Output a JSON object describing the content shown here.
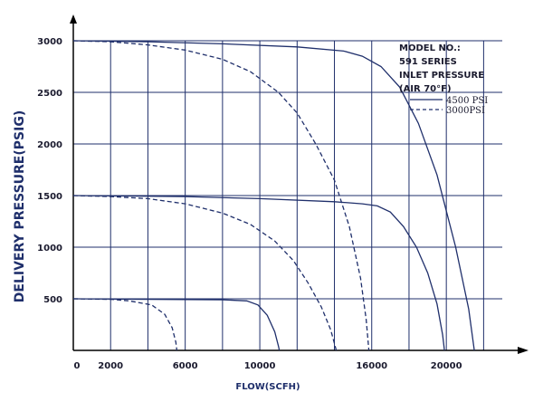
{
  "chart_data": {
    "type": "line",
    "xlabel": "FLOW(SCFH)",
    "ylabel": "DELIVERY PRESSURE(PSIG)",
    "xlim": [
      0,
      23000
    ],
    "ylim": [
      0,
      3000
    ],
    "x_ticks": [
      {
        "value": 0,
        "label": "0"
      },
      {
        "value": 2000,
        "label": "2000"
      },
      {
        "value": 6000,
        "label": "6000"
      },
      {
        "value": 10000,
        "label": "10000"
      },
      {
        "value": 16000,
        "label": "16000"
      },
      {
        "value": 20000,
        "label": "20000"
      }
    ],
    "y_ticks": [
      {
        "value": 500,
        "label": "500"
      },
      {
        "value": 1000,
        "label": "1000"
      },
      {
        "value": 1500,
        "label": "1500"
      },
      {
        "value": 2000,
        "label": "2000"
      },
      {
        "value": 2500,
        "label": "2500"
      },
      {
        "value": 3000,
        "label": "3000"
      }
    ],
    "grid": true,
    "legend": {
      "placement": "top-right",
      "title_lines": [
        "MODEL NO.:",
        "591 SERIES",
        "INLET PRESSURE",
        "(AIR 70°F)"
      ],
      "entries": [
        {
          "label": "4500 PSI",
          "style": "solid"
        },
        {
          "label": "3000PSI",
          "style": "dashed"
        }
      ]
    },
    "series": [
      {
        "style": "solid",
        "points": [
          [
            0,
            3000
          ],
          [
            4000,
            2990
          ],
          [
            8000,
            2970
          ],
          [
            12000,
            2940
          ],
          [
            14500,
            2900
          ],
          [
            15500,
            2850
          ],
          [
            16500,
            2750
          ],
          [
            17500,
            2550
          ],
          [
            18500,
            2200
          ],
          [
            19500,
            1700
          ],
          [
            20500,
            1000
          ],
          [
            21200,
            400
          ],
          [
            21500,
            0
          ]
        ]
      },
      {
        "style": "dashed",
        "points": [
          [
            0,
            3000
          ],
          [
            2000,
            2990
          ],
          [
            4000,
            2960
          ],
          [
            6000,
            2910
          ],
          [
            8000,
            2820
          ],
          [
            9500,
            2700
          ],
          [
            11000,
            2500
          ],
          [
            12000,
            2300
          ],
          [
            13000,
            2000
          ],
          [
            14000,
            1650
          ],
          [
            14800,
            1200
          ],
          [
            15400,
            700
          ],
          [
            15700,
            300
          ],
          [
            15850,
            0
          ]
        ]
      },
      {
        "style": "solid",
        "points": [
          [
            0,
            1500
          ],
          [
            6000,
            1490
          ],
          [
            10000,
            1470
          ],
          [
            14000,
            1440
          ],
          [
            15500,
            1420
          ],
          [
            16300,
            1400
          ],
          [
            17000,
            1340
          ],
          [
            17700,
            1200
          ],
          [
            18400,
            1000
          ],
          [
            19000,
            750
          ],
          [
            19500,
            450
          ],
          [
            19800,
            150
          ],
          [
            19900,
            0
          ]
        ]
      },
      {
        "style": "dashed",
        "points": [
          [
            0,
            1500
          ],
          [
            2000,
            1490
          ],
          [
            4000,
            1470
          ],
          [
            6000,
            1420
          ],
          [
            8000,
            1330
          ],
          [
            9500,
            1220
          ],
          [
            10800,
            1060
          ],
          [
            11800,
            870
          ],
          [
            12600,
            650
          ],
          [
            13300,
            420
          ],
          [
            13800,
            200
          ],
          [
            14100,
            0
          ]
        ]
      },
      {
        "style": "solid",
        "points": [
          [
            0,
            500
          ],
          [
            4000,
            495
          ],
          [
            8000,
            490
          ],
          [
            9300,
            480
          ],
          [
            9900,
            440
          ],
          [
            10400,
            340
          ],
          [
            10800,
            180
          ],
          [
            11000,
            40
          ],
          [
            11050,
            0
          ]
        ]
      },
      {
        "style": "dashed",
        "points": [
          [
            0,
            500
          ],
          [
            2000,
            495
          ],
          [
            3000,
            480
          ],
          [
            4200,
            440
          ],
          [
            4900,
            350
          ],
          [
            5300,
            220
          ],
          [
            5500,
            80
          ],
          [
            5550,
            0
          ]
        ]
      }
    ]
  }
}
